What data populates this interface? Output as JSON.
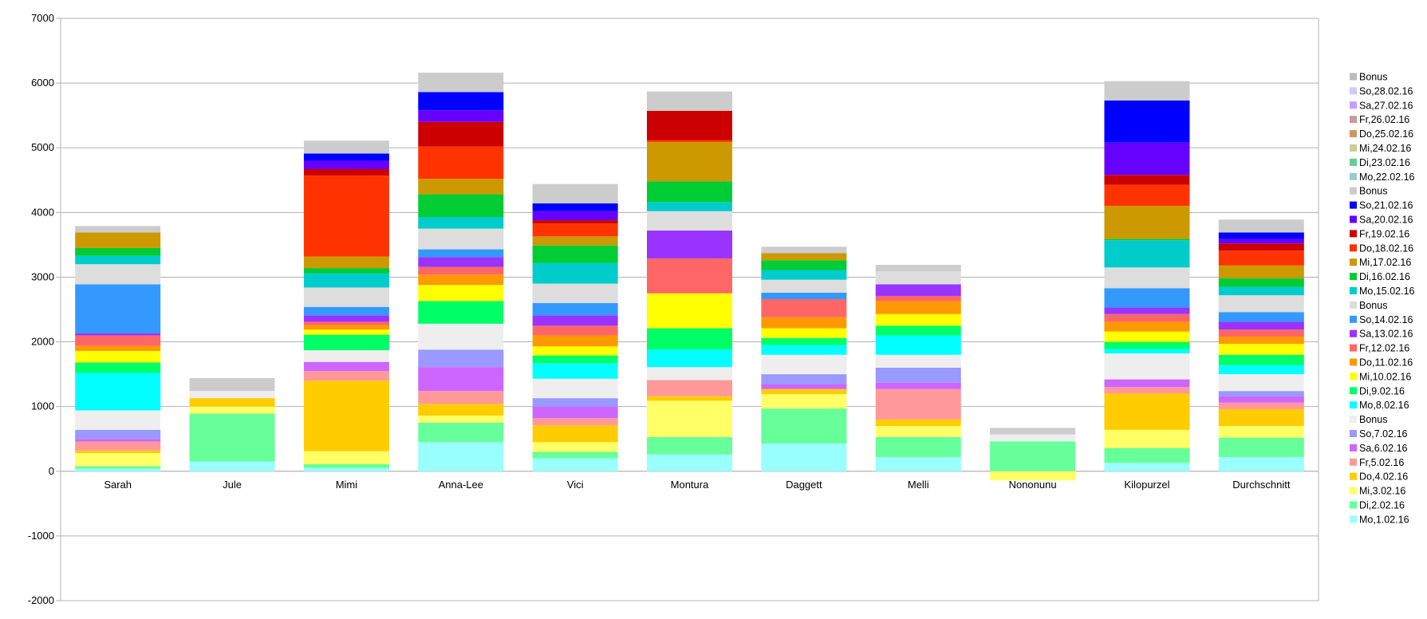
{
  "chart_data": {
    "type": "bar",
    "stacked": true,
    "title": "",
    "xlabel": "",
    "ylabel": "",
    "ylim": [
      -2000,
      7000
    ],
    "yticks": [
      -2000,
      -1000,
      0,
      1000,
      2000,
      3000,
      4000,
      5000,
      6000,
      7000
    ],
    "ytick_labels": [
      "-2000",
      "-1000",
      "0",
      "1000",
      "2000",
      "3000",
      "4000",
      "5000",
      "6000",
      "7000"
    ],
    "grid": true,
    "legend_position": "right",
    "categories": [
      "Sarah",
      "Jule",
      "Mimi",
      "Anna-Lee",
      "Vici",
      "Montura",
      "Daggett",
      "Melli",
      "Nononunu",
      "Kilopurzel",
      "Durchschnitt"
    ],
    "series": [
      {
        "name": "Mo,1.02.16",
        "color": "#99ffff",
        "values": [
          40,
          150,
          50,
          450,
          200,
          260,
          430,
          220,
          0,
          130,
          220
        ]
      },
      {
        "name": "Di,2.02.16",
        "color": "#66ff99",
        "values": [
          40,
          740,
          60,
          300,
          100,
          270,
          540,
          310,
          460,
          230,
          300
        ]
      },
      {
        "name": "Mi,3.02.16",
        "color": "#ffff66",
        "values": [
          200,
          110,
          200,
          110,
          150,
          560,
          220,
          170,
          -140,
          280,
          180
        ]
      },
      {
        "name": "Do,4.02.16",
        "color": "#ffcc00",
        "values": [
          40,
          130,
          1090,
          180,
          260,
          70,
          80,
          100,
          0,
          560,
          260
        ]
      },
      {
        "name": "Fr,5.02.16",
        "color": "#ff9999",
        "values": [
          140,
          0,
          150,
          200,
          110,
          250,
          0,
          470,
          0,
          100,
          100
        ]
      },
      {
        "name": "Sa,6.02.16",
        "color": "#cc66ff",
        "values": [
          40,
          0,
          140,
          370,
          180,
          0,
          80,
          100,
          0,
          120,
          100
        ]
      },
      {
        "name": "So,7.02.16",
        "color": "#9999ff",
        "values": [
          140,
          0,
          0,
          270,
          130,
          0,
          150,
          230,
          0,
          0,
          80
        ]
      },
      {
        "name": "Bonus",
        "color": "#eeeeee",
        "values": [
          300,
          110,
          180,
          400,
          300,
          200,
          300,
          200,
          110,
          400,
          260
        ]
      },
      {
        "name": "Mo,8.02.16",
        "color": "#00ffff",
        "values": [
          580,
          0,
          0,
          0,
          240,
          270,
          150,
          300,
          0,
          70,
          140
        ]
      },
      {
        "name": "Di,9.02.16",
        "color": "#00ff66",
        "values": [
          160,
          0,
          240,
          350,
          120,
          330,
          110,
          150,
          0,
          110,
          160
        ]
      },
      {
        "name": "Mi,10.02.16",
        "color": "#ffff00",
        "values": [
          180,
          0,
          80,
          250,
          140,
          540,
          150,
          180,
          0,
          160,
          170
        ]
      },
      {
        "name": "Do,11.02.16",
        "color": "#ff9900",
        "values": [
          80,
          0,
          70,
          160,
          170,
          0,
          170,
          200,
          0,
          150,
          110
        ]
      },
      {
        "name": "Fr,12.02.16",
        "color": "#ff6666",
        "values": [
          160,
          0,
          50,
          120,
          150,
          540,
          280,
          80,
          0,
          120,
          110
        ]
      },
      {
        "name": "Sa,13.02.16",
        "color": "#9933ff",
        "values": [
          30,
          0,
          100,
          150,
          160,
          430,
          0,
          180,
          0,
          100,
          120
        ]
      },
      {
        "name": "So,14.02.16",
        "color": "#3399ff",
        "values": [
          760,
          0,
          130,
          120,
          190,
          0,
          100,
          0,
          0,
          300,
          150
        ]
      },
      {
        "name": "Bonus",
        "color": "#dddddd",
        "values": [
          310,
          0,
          300,
          320,
          300,
          300,
          200,
          200,
          0,
          320,
          260
        ]
      },
      {
        "name": "Mo,15.02.16",
        "color": "#00cccc",
        "values": [
          130,
          0,
          220,
          180,
          320,
          140,
          150,
          0,
          0,
          420,
          130
        ]
      },
      {
        "name": "Di,16.02.16",
        "color": "#00cc33",
        "values": [
          120,
          0,
          80,
          350,
          270,
          320,
          150,
          0,
          0,
          20,
          130
        ]
      },
      {
        "name": "Mi,17.02.16",
        "color": "#cc9900",
        "values": [
          240,
          0,
          180,
          240,
          140,
          610,
          110,
          0,
          0,
          510,
          200
        ]
      },
      {
        "name": "Do,18.02.16",
        "color": "#ff3300",
        "values": [
          0,
          0,
          1250,
          500,
          200,
          30,
          0,
          0,
          0,
          330,
          230
        ]
      },
      {
        "name": "Fr,19.02.16",
        "color": "#cc0000",
        "values": [
          0,
          0,
          100,
          380,
          50,
          450,
          0,
          0,
          0,
          150,
          110
        ]
      },
      {
        "name": "Sa,20.02.16",
        "color": "#6600ff",
        "values": [
          0,
          0,
          130,
          180,
          140,
          0,
          0,
          0,
          0,
          500,
          70
        ]
      },
      {
        "name": "So,21.02.16",
        "color": "#0000ff",
        "values": [
          0,
          0,
          110,
          280,
          120,
          0,
          0,
          0,
          0,
          650,
          100
        ]
      },
      {
        "name": "Bonus",
        "color": "#cccccc",
        "values": [
          100,
          200,
          200,
          300,
          300,
          300,
          100,
          100,
          100,
          300,
          200
        ]
      },
      {
        "name": "Mo,22.02.16",
        "color": "#99cccc",
        "values": [
          0,
          0,
          0,
          0,
          0,
          0,
          0,
          0,
          0,
          0,
          0
        ]
      },
      {
        "name": "Di,23.02.16",
        "color": "#66cc99",
        "values": [
          0,
          0,
          0,
          0,
          0,
          0,
          0,
          0,
          0,
          0,
          0
        ]
      },
      {
        "name": "Mi,24.02.16",
        "color": "#cccc99",
        "values": [
          0,
          0,
          0,
          0,
          0,
          0,
          0,
          0,
          0,
          0,
          0
        ]
      },
      {
        "name": "Do,25.02.16",
        "color": "#cc9966",
        "values": [
          0,
          0,
          0,
          0,
          0,
          0,
          0,
          0,
          0,
          0,
          0
        ]
      },
      {
        "name": "Fr,26.02.16",
        "color": "#cc9999",
        "values": [
          0,
          0,
          0,
          0,
          0,
          0,
          0,
          0,
          0,
          0,
          0
        ]
      },
      {
        "name": "Sa,27.02.16",
        "color": "#cc99ff",
        "values": [
          0,
          0,
          0,
          0,
          0,
          0,
          0,
          0,
          0,
          0,
          0
        ]
      },
      {
        "name": "So,28.02.16",
        "color": "#ccccff",
        "values": [
          0,
          0,
          0,
          0,
          0,
          0,
          0,
          0,
          0,
          0,
          0
        ]
      },
      {
        "name": "Bonus",
        "color": "#bbbbbb",
        "values": [
          0,
          0,
          0,
          0,
          0,
          0,
          0,
          0,
          0,
          0,
          0
        ]
      }
    ]
  }
}
